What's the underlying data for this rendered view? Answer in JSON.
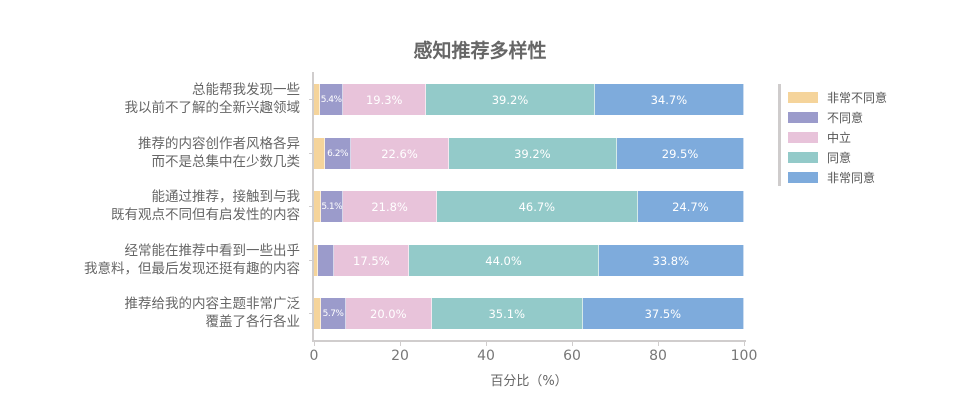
{
  "chart_data": {
    "type": "bar",
    "orientation": "horizontal",
    "stacked": true,
    "title": "感知推荐多样性",
    "xlabel": "百分比（%）",
    "ylabel": "",
    "xlim": [
      0,
      100
    ],
    "xticks": [
      "0",
      "20",
      "40",
      "60",
      "80",
      "100"
    ],
    "categories": [
      [
        "总能帮我发现一些",
        "我以前不了解的全新兴趣领域"
      ],
      [
        "推荐的内容创作者风格各异",
        "而不是总集中在少数几类"
      ],
      [
        "能通过推荐，接触到与我",
        "既有观点不同但有启发性的内容"
      ],
      [
        "经常能在推荐中看到一些出乎",
        "我意料，但最后发现还挺有趣的内容"
      ],
      [
        "推荐给我的内容主题非常广泛",
        "覆盖了各行各业"
      ]
    ],
    "series": [
      {
        "name": "非常不同意",
        "color": "#f5d49b",
        "values": [
          1.4,
          2.5,
          1.7,
          0.9,
          1.7
        ],
        "labels": [
          "",
          "",
          "",
          "",
          ""
        ]
      },
      {
        "name": "不同意",
        "color": "#9b9bcb",
        "values": [
          5.4,
          6.2,
          5.1,
          3.8,
          5.7
        ],
        "labels": [
          "5.4%",
          "6.2%",
          "5.1%",
          "",
          "5.7%"
        ]
      },
      {
        "name": "中立",
        "color": "#e8c3da",
        "values": [
          19.3,
          22.6,
          21.8,
          17.5,
          20.0
        ],
        "labels": [
          "19.3%",
          "22.6%",
          "21.8%",
          "17.5%",
          "20.0%"
        ]
      },
      {
        "name": "同意",
        "color": "#93cac9",
        "values": [
          39.2,
          39.2,
          46.7,
          44.0,
          35.1
        ],
        "labels": [
          "39.2%",
          "39.2%",
          "46.7%",
          "44.0%",
          "35.1%"
        ]
      },
      {
        "name": "非常同意",
        "color": "#7eabdc",
        "values": [
          34.7,
          29.5,
          24.7,
          33.8,
          37.5
        ],
        "labels": [
          "34.7%",
          "29.5%",
          "24.7%",
          "33.8%",
          "37.5%"
        ]
      }
    ],
    "legend_position": "right",
    "grid": false
  }
}
